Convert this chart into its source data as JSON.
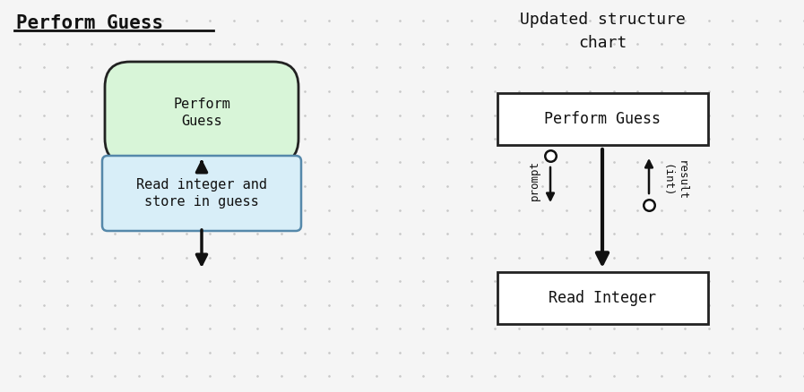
{
  "bg_color": "#f5f5f5",
  "dot_color": "#c8c8c8",
  "title_left": "Perform Guess",
  "title_right": "Updated structure\nchart",
  "left_oval_text": "Perform\nGuess",
  "left_oval_fill_top": "#e8fae8",
  "left_oval_fill": "#d8f5d8",
  "left_oval_edge": "#222222",
  "left_box_text": "Read integer and\nstore in guess",
  "left_box_fill": "#d8eef8",
  "left_box_edge": "#5588aa",
  "right_top_box_text": "Perform Guess",
  "right_top_box_fill": "#ffffff",
  "right_top_box_edge": "#222222",
  "right_bot_box_text": "Read Integer",
  "right_bot_box_fill": "#ffffff",
  "right_bot_box_edge": "#222222",
  "prompt_label": "prompt",
  "result_label": "(int)",
  "result_label2": "result",
  "text_color": "#111111",
  "arrow_color": "#111111",
  "font_size_title": 15,
  "font_size_box": 11,
  "font_size_label": 9,
  "font_size_right_title": 13
}
